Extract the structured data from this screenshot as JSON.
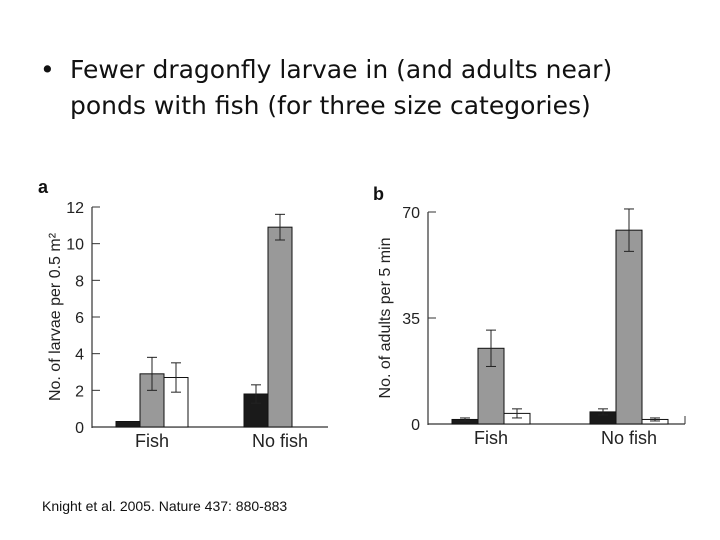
{
  "slide": {
    "bullet_symbol": "•",
    "bullet_text": "Fewer dragonfly larvae in (and adults near) ponds with fish (for three size categories)",
    "citation": "Knight et al. 2005.  Nature 437: 880-883"
  },
  "colors": {
    "small": "#1a1a1a",
    "medium": "#999999",
    "large": "#ffffff",
    "axis": "#333333"
  },
  "chart_data": [
    {
      "type": "bar",
      "panel_label": "a",
      "categories": [
        "Fish",
        "No fish"
      ],
      "ylabel": "No. of larvae per 0.5 m²",
      "ylim": [
        0,
        12
      ],
      "yticks": [
        0,
        2,
        4,
        6,
        8,
        10,
        12
      ],
      "series": [
        {
          "values": [
            0.3,
            1.8
          ],
          "errors": [
            0,
            0.5
          ]
        },
        {
          "values": [
            2.9,
            10.9
          ],
          "errors": [
            0.9,
            0.7
          ]
        },
        {
          "values": [
            2.7,
            null
          ],
          "errors": [
            0.8,
            null
          ]
        }
      ]
    },
    {
      "type": "bar",
      "panel_label": "b",
      "categories": [
        "Fish",
        "No fish"
      ],
      "ylabel": "No. of adults per 5 min",
      "ylim": [
        0,
        70
      ],
      "yticks": [
        0,
        35,
        70
      ],
      "series": [
        {
          "values": [
            1.5,
            4
          ],
          "errors": [
            0.5,
            1
          ]
        },
        {
          "values": [
            25,
            64
          ],
          "errors": [
            6,
            7
          ]
        },
        {
          "values": [
            3.5,
            1.5
          ],
          "errors": [
            1.5,
            0.5
          ]
        }
      ]
    }
  ]
}
